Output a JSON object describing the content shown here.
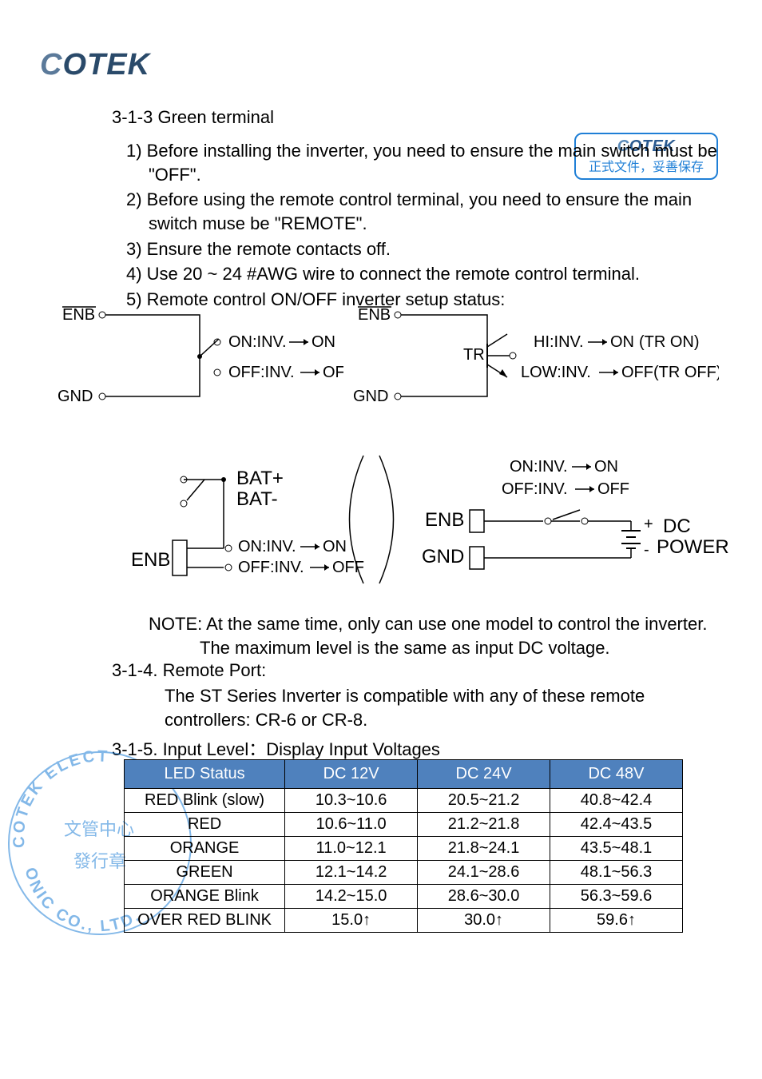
{
  "logo": {
    "c": "C",
    "rest": "OTEK"
  },
  "stamp": {
    "logo_c": "C",
    "logo_rest": "OTEK",
    "zh": "正式文件，妥善保存"
  },
  "section_313": "3-1-3 Green terminal",
  "items": [
    "1) Before installing the inverter, you need to ensure the main switch must be \"OFF\".",
    "2) Before using the remote control terminal, you need to ensure the main switch muse be \"REMOTE\".",
    "3) Ensure the remote contacts off.",
    "4) Use 20 ~ 24 #AWG wire to connect the remote control terminal.",
    "5) Remote control ON/OFF inverter setup status:"
  ],
  "diagrams": {
    "d1": {
      "enb": "ENB",
      "gnd": "GND",
      "on": "ON:INV.",
      "on_r": "ON",
      "off": "OFF:INV.",
      "off_r": "OFF"
    },
    "d2": {
      "enb": "ENB",
      "gnd": "GND",
      "tr": "TR",
      "hi": "HI:INV.",
      "hi_r": "ON",
      "hi_note": "(TR ON)",
      "low": "LOW:INV.",
      "low_r": "OFF",
      "low_note": "(TR OFF)"
    },
    "d3": {
      "enb": "ENB",
      "batp": "BAT+",
      "batn": "BAT-",
      "on": "ON:INV.",
      "on_r": "ON",
      "off": "OFF:INV.",
      "off_r": "OFF"
    },
    "d4": {
      "enb": "ENB",
      "gnd": "GND",
      "on": "ON:INV.",
      "on_r": "ON",
      "off": "OFF:INV.",
      "off_r": "OFF",
      "dc": "DC",
      "power": "POWER",
      "plus": "+",
      "minus": "-"
    }
  },
  "note_line1": "NOTE: At the same time, only can use one model to control the inverter.",
  "note_line2": "The maximum level is the same as input DC voltage.",
  "section_314": "3-1-4. Remote Port:",
  "remote_line1": "The ST Series Inverter is compatible with any of these remote",
  "remote_line2": "controllers: CR-6  or CR-8.",
  "section_315": "3-1-5. Input Level：Display Input Voltages",
  "table": {
    "header_bg": "#4f81bd",
    "columns": [
      "LED Status",
      "DC 12V",
      "DC 24V",
      "DC 48V"
    ],
    "rows": [
      [
        "RED Blink (slow)",
        "10.3~10.6",
        "20.5~21.2",
        "40.8~42.4"
      ],
      [
        "RED",
        "10.6~11.0",
        "21.2~21.8",
        "42.4~43.5"
      ],
      [
        "ORANGE",
        "11.0~12.1",
        "21.8~24.1",
        "43.5~48.1"
      ],
      [
        "GREEN",
        "12.1~14.2",
        "24.1~28.6",
        "48.1~56.3"
      ],
      [
        "ORANGE Blink",
        "14.2~15.0",
        "28.6~30.0",
        "56.3~59.6"
      ],
      [
        "OVER RED BLINK",
        "15.0↑",
        "30.0↑",
        "59.6↑"
      ]
    ],
    "col_widths": [
      "200px",
      "165px",
      "165px",
      "165px"
    ]
  },
  "watermark": {
    "outer_top": "COTEK ELECT",
    "outer_bottom": "ONIC CO., LTD.",
    "zh1": "文管中心",
    "zh2": "發行章"
  }
}
